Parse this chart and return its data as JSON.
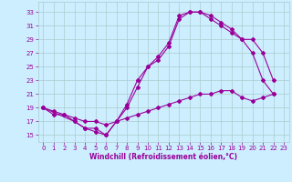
{
  "xlabel": "Windchill (Refroidissement éolien,°C)",
  "background_color": "#cceeff",
  "grid_color": "#aacccc",
  "line_color": "#990099",
  "xlim": [
    -0.5,
    23.5
  ],
  "ylim": [
    14.0,
    34.5
  ],
  "xticks": [
    0,
    1,
    2,
    3,
    4,
    5,
    6,
    7,
    8,
    9,
    10,
    11,
    12,
    13,
    14,
    15,
    16,
    17,
    18,
    19,
    20,
    21,
    22,
    23
  ],
  "yticks": [
    15,
    17,
    19,
    21,
    23,
    25,
    27,
    29,
    31,
    33
  ],
  "line1_x": [
    0,
    1,
    2,
    3,
    4,
    5,
    6,
    7,
    8,
    9,
    10,
    11,
    12,
    13,
    14,
    15,
    16,
    17,
    18,
    19,
    20,
    21,
    22
  ],
  "line1_y": [
    19,
    18,
    18,
    17,
    16,
    16,
    15,
    17,
    19.5,
    23,
    25,
    26,
    28,
    32,
    33,
    33,
    32,
    31,
    30,
    29,
    27,
    23,
    21
  ],
  "line2_x": [
    0,
    3,
    4,
    5,
    6,
    7,
    8,
    9,
    10,
    11,
    12,
    13,
    14,
    15,
    16,
    17,
    18,
    19,
    20,
    21,
    22
  ],
  "line2_y": [
    19,
    17,
    16,
    15.5,
    15,
    17,
    19,
    22,
    25,
    26.5,
    28.5,
    32.5,
    33,
    33,
    32.5,
    31.5,
    30.5,
    29,
    29,
    27,
    23
  ],
  "line3_x": [
    0,
    1,
    2,
    3,
    4,
    5,
    6,
    7,
    8,
    9,
    10,
    11,
    12,
    13,
    14,
    15,
    16,
    17,
    18,
    19,
    20,
    21,
    22
  ],
  "line3_y": [
    19,
    18.5,
    18,
    17.5,
    17,
    17,
    16.5,
    17,
    17.5,
    18,
    18.5,
    19,
    19.5,
    20,
    20.5,
    21,
    21,
    21.5,
    21.5,
    20.5,
    20,
    20.5,
    21
  ],
  "tick_fontsize": 5,
  "xlabel_fontsize": 5.5,
  "marker_size": 2.0,
  "linewidth": 0.8
}
